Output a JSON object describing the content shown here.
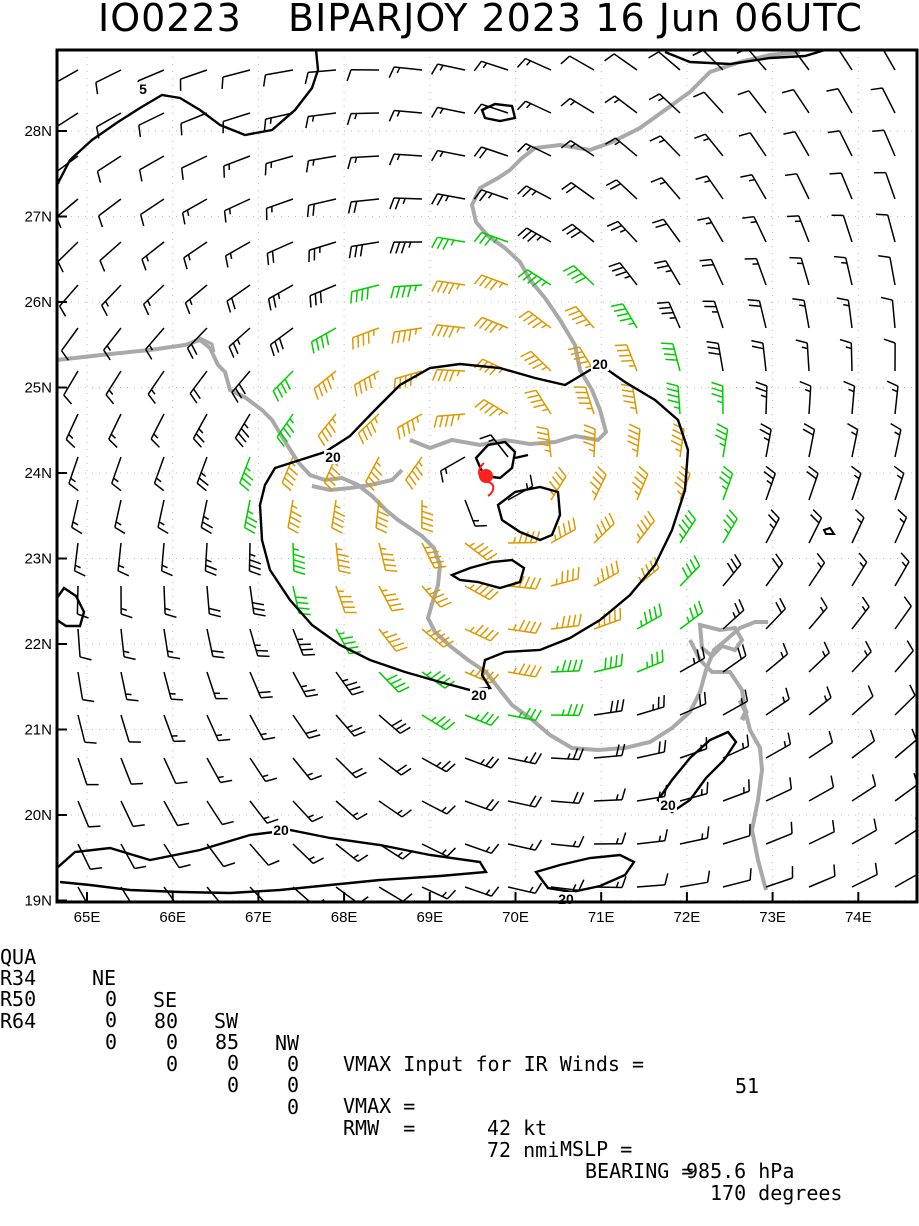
{
  "title": {
    "id": "IO0223",
    "main": "BIPARJOY 2023 16 Jun 06UTC"
  },
  "map": {
    "lat_labels": [
      "28N",
      "27N",
      "26N",
      "25N",
      "24N",
      "23N",
      "22N",
      "21N",
      "20N",
      "19N"
    ],
    "lon_labels": [
      "65E",
      "66E",
      "67E",
      "68E",
      "69E",
      "70E",
      "71E",
      "72E",
      "73E",
      "74E"
    ],
    "contour_labels": [
      "5",
      "20",
      "20",
      "20",
      "20",
      "20",
      "20"
    ],
    "colors": {
      "barb_low": "#000000",
      "barb_34kt": "#00cc00",
      "barb_50kt": "#dd9900",
      "coast": "#aaaaaa",
      "contour": "#000000",
      "center": "#ff2020"
    },
    "storm_center": {
      "lat": 23.9,
      "lon": 69.7
    }
  },
  "info": {
    "quadrant_header": [
      "QUA",
      "NE",
      "SE",
      "SW",
      "NW"
    ],
    "rows": [
      {
        "label": "R34",
        "values": [
          "0",
          "80",
          "85",
          "0"
        ]
      },
      {
        "label": "R50",
        "values": [
          "0",
          "0",
          "0",
          "0"
        ]
      },
      {
        "label": "R64",
        "values": [
          "0",
          "0",
          "0",
          "0"
        ]
      }
    ],
    "vmax_input_text": "VMAX Input for IR Winds =",
    "vmax_input_value": "51",
    "vmax_text": "VMAX =",
    "vmax_value": "42 kt",
    "mslp_text": "MSLP =",
    "mslp_value": "985.6 hPa",
    "rmw_text": "RMW  =",
    "rmw_value": "72 nmi",
    "bearing_text": "BEARING =",
    "bearing_value": "170 degrees"
  }
}
